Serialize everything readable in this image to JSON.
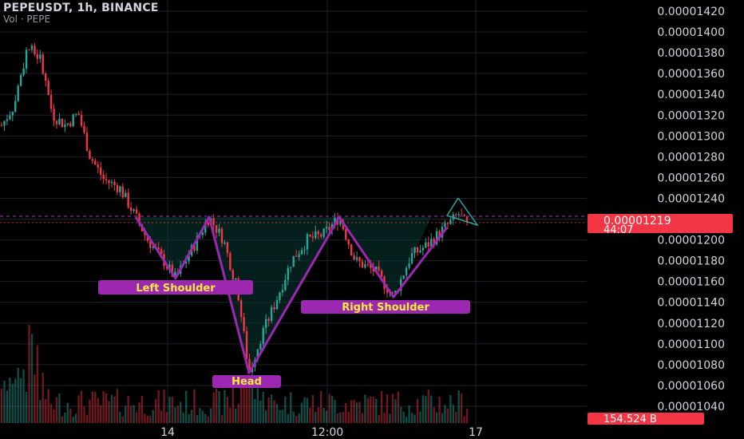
{
  "header": {
    "symbol_line": "PEPEUSDT, 1h, BINANCE",
    "volume_line": "Vol · PEPE"
  },
  "colors": {
    "background": "#000000",
    "up": "#26a69a",
    "down": "#f23645",
    "pattern": "#9c27b0",
    "label_bg": "#9c27b0",
    "label_text": "#ffeb3b",
    "neckline": "#9c27b0",
    "triangle": "#26a69a",
    "price_badge": "#f23645",
    "grid": "#1e222d"
  },
  "chart_data": {
    "type": "candlestick",
    "price_axis": {
      "min": 1.04e-05,
      "max": 1.42e-05,
      "ticks": [
        "0.00001420",
        "0.00001400",
        "0.00001380",
        "0.00001360",
        "0.00001340",
        "0.00001320",
        "0.00001300",
        "0.00001280",
        "0.00001260",
        "0.00001240",
        "0.00001220",
        "0.00001200",
        "0.00001180",
        "0.00001160",
        "0.00001140",
        "0.00001120",
        "0.00001100",
        "0.00001080",
        "0.00001060",
        "0.00001040"
      ]
    },
    "time_axis_labels": [
      "14",
      "12:00",
      "17"
    ],
    "current_price": "0.00001219",
    "countdown": "44:07",
    "volume_badge": "154.524 B",
    "neckline_price": 1.222e-05,
    "pattern": {
      "name": "Head and Shoulders (inverse)",
      "labels": [
        "Left Shoulder",
        "Head",
        "Right Shoulder"
      ],
      "points": [
        {
          "bar": 0,
          "price": 1.222e-05
        },
        {
          "bar": 1,
          "price": 1.163e-05
        },
        {
          "bar": 2,
          "price": 1.222e-05
        },
        {
          "bar": 3,
          "price": 1.072e-05
        },
        {
          "bar": 4,
          "price": 1.222e-05
        },
        {
          "bar": 5,
          "price": 1.145e-05
        },
        {
          "bar": 6,
          "price": 1.212e-05
        }
      ]
    },
    "grid": true
  }
}
